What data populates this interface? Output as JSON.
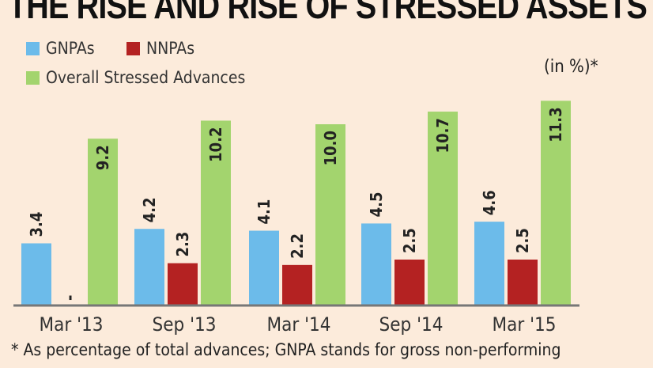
{
  "chart_data": {
    "type": "bar",
    "title": "THE RISE AND RISE OF STRESSED ASSETS",
    "unit_label": "(in %)*",
    "categories": [
      "Mar '13",
      "Sep '13",
      "Mar '14",
      "Sep '14",
      "Mar '15"
    ],
    "series": [
      {
        "name": "GNPAs",
        "color": "#6cbbea",
        "values": [
          3.4,
          4.2,
          4.1,
          4.5,
          4.6
        ],
        "labels": [
          "3.4",
          "4.2",
          "4.1",
          "4.5",
          "4.6"
        ]
      },
      {
        "name": "NNPAs",
        "color": "#b42222",
        "values": [
          null,
          2.3,
          2.2,
          2.5,
          2.5
        ],
        "labels": [
          "-",
          "2.3",
          "2.2",
          "2.5",
          "2.5"
        ]
      },
      {
        "name": "Overall Stressed Advances",
        "color": "#a3d46e",
        "values": [
          9.2,
          10.2,
          10.0,
          10.7,
          11.3
        ],
        "labels": [
          "9.2",
          "10.2",
          "10.0",
          "10.7",
          "11.3"
        ]
      }
    ],
    "ylim": [
      0,
      11.5
    ],
    "grid": false,
    "legend_position": "top-left",
    "footnote": "* As percentage of total advances; GNPA stands for gross non-performing"
  }
}
